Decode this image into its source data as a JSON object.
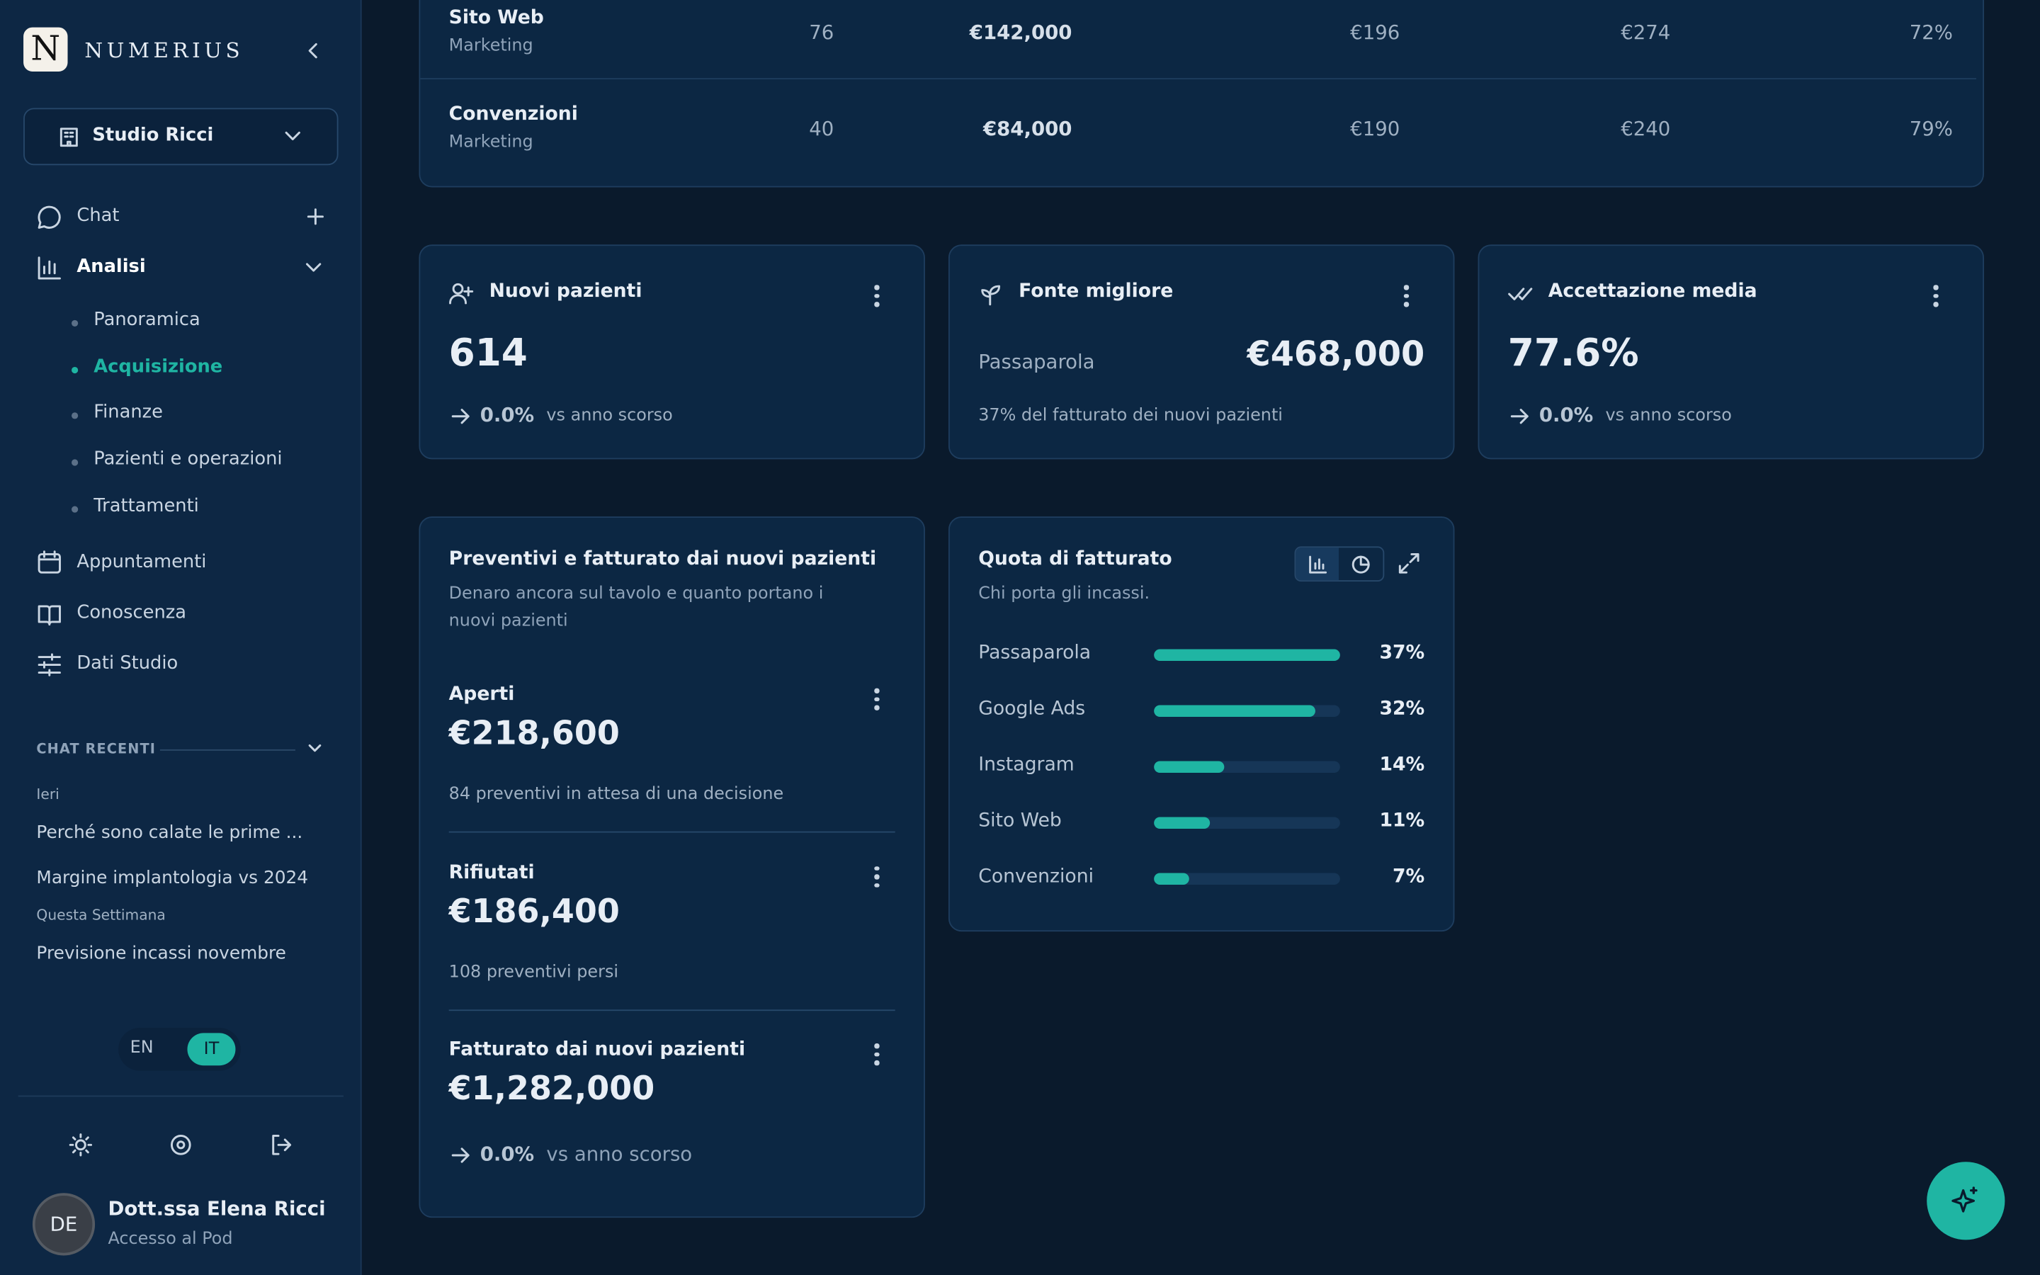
{
  "sidebar": {
    "logo": "N",
    "brand": "NUMERIUS",
    "workspace": "Studio Ricci",
    "nav": {
      "chat": "Chat",
      "analysis": "Analisi",
      "sub": [
        "Panoramica",
        "Acquisizione",
        "Finanze",
        "Pazienti e operazioni",
        "Trattamenti"
      ],
      "appointments": "Appuntamenti",
      "knowledge": "Conoscenza",
      "studio": "Dati Studio"
    },
    "recent": {
      "title": "CHAT RECENTI",
      "groups": [
        {
          "label": "Ieri",
          "items": [
            "Perché sono calate le prime ...",
            "Margine implantologia vs 2024"
          ]
        },
        {
          "label": "Questa Settimana",
          "items": [
            "Previsione incassi novembre"
          ]
        }
      ]
    },
    "lang": [
      "EN",
      "IT"
    ],
    "user": {
      "initials": "DE",
      "name": "Dott.ssa Elena Ricci",
      "role": "Accesso al Pod"
    }
  },
  "table": {
    "rows": [
      [
        "Sito Web",
        "Marketing",
        "76",
        "€142,000",
        "€196",
        "€274",
        "72%"
      ],
      [
        "Convenzioni",
        "Marketing",
        "40",
        "€84,000",
        "€190",
        "€240",
        "79%"
      ]
    ]
  },
  "kpis": [
    {
      "title": "Nuovi pazienti",
      "value": "614",
      "delta": "0.0%",
      "note": "vs anno scorso"
    },
    {
      "title": "Fonte migliore",
      "label": "Passaparola",
      "value": "€468,000",
      "note": "37% del fatturato dei nuovi pazienti"
    },
    {
      "title": "Accettazione media",
      "value": "77.6%",
      "delta": "0.0%",
      "note": "vs anno scorso"
    }
  ],
  "quotes": {
    "title": "Preventivi e fatturato dai nuovi pazienti",
    "subtitle": "Denaro ancora sul tavolo e quanto portano i nuovi pazienti",
    "items": [
      {
        "title": "Aperti",
        "value": "€218,600",
        "note": "84 preventivi in attesa di una decisione"
      },
      {
        "title": "Rifiutati",
        "value": "€186,400",
        "note": "108 preventivi persi"
      },
      {
        "title": "Fatturato dai nuovi pazienti",
        "value": "€1,282,000",
        "delta": "0.0%",
        "note": "vs anno scorso"
      }
    ]
  },
  "chart_data": {
    "type": "bar",
    "orientation": "horizontal",
    "title": "Quota di fatturato",
    "subtitle": "Chi porta gli incassi.",
    "categories": [
      "Passaparola",
      "Google Ads",
      "Instagram",
      "Sito Web",
      "Convenzioni"
    ],
    "values": [
      37,
      32,
      14,
      11,
      7
    ],
    "value_labels": [
      "37%",
      "32%",
      "14%",
      "11%",
      "7%"
    ],
    "color": "#1fb5a3"
  }
}
